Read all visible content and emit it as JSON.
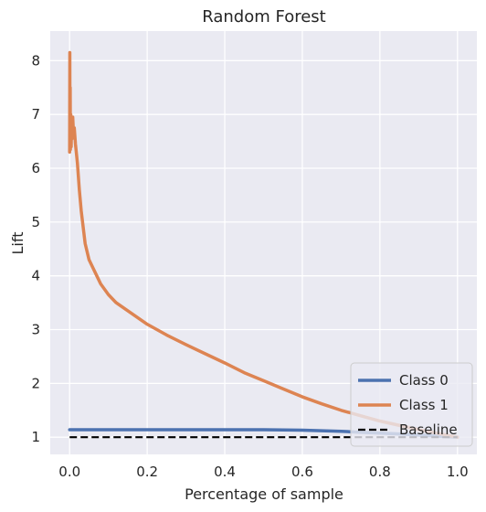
{
  "chart_data": {
    "type": "line",
    "title": "Random Forest",
    "xlabel": "Percentage of sample",
    "ylabel": "Lift",
    "xlim": [
      -0.05,
      1.05
    ],
    "ylim": [
      0.68,
      8.55
    ],
    "xticks": [
      "0.0",
      "0.2",
      "0.4",
      "0.6",
      "0.8",
      "1.0"
    ],
    "xtick_values": [
      0.0,
      0.2,
      0.4,
      0.6,
      0.8,
      1.0
    ],
    "yticks": [
      "1",
      "2",
      "3",
      "4",
      "5",
      "6",
      "7",
      "8"
    ],
    "ytick_values": [
      1,
      2,
      3,
      4,
      5,
      6,
      7,
      8
    ],
    "grid": true,
    "legend_position": "bottom-right",
    "series": [
      {
        "name": "Class 0",
        "color": "#4c72b0",
        "x": [
          0.0,
          0.1,
          0.2,
          0.3,
          0.4,
          0.5,
          0.55,
          0.6,
          0.65,
          0.7,
          0.75,
          0.8,
          0.85,
          0.9,
          0.95,
          1.0
        ],
        "y": [
          1.14,
          1.14,
          1.14,
          1.14,
          1.14,
          1.14,
          1.135,
          1.13,
          1.12,
          1.11,
          1.09,
          1.075,
          1.06,
          1.04,
          1.02,
          1.0
        ]
      },
      {
        "name": "Class 1",
        "color": "#dd8452",
        "x": [
          0.0,
          0.0005,
          0.001,
          0.0015,
          0.002,
          0.003,
          0.004,
          0.005,
          0.006,
          0.008,
          0.01,
          0.012,
          0.015,
          0.02,
          0.025,
          0.03,
          0.04,
          0.05,
          0.06,
          0.07,
          0.08,
          0.1,
          0.12,
          0.15,
          0.2,
          0.25,
          0.3,
          0.35,
          0.4,
          0.45,
          0.5,
          0.55,
          0.6,
          0.65,
          0.7,
          0.75,
          0.8,
          0.85,
          0.9,
          0.95,
          1.0
        ],
        "y": [
          6.3,
          8.15,
          6.5,
          7.5,
          6.35,
          7.0,
          6.4,
          6.85,
          6.55,
          6.95,
          6.65,
          6.75,
          6.45,
          6.1,
          5.6,
          5.2,
          4.6,
          4.3,
          4.15,
          4.0,
          3.85,
          3.65,
          3.5,
          3.35,
          3.1,
          2.9,
          2.72,
          2.55,
          2.38,
          2.2,
          2.05,
          1.9,
          1.75,
          1.62,
          1.5,
          1.4,
          1.3,
          1.22,
          1.14,
          1.07,
          1.0
        ]
      },
      {
        "name": "Baseline",
        "color": "#000000",
        "dashed": true,
        "x": [
          0.0,
          1.0
        ],
        "y": [
          1.0,
          1.0
        ]
      }
    ]
  }
}
